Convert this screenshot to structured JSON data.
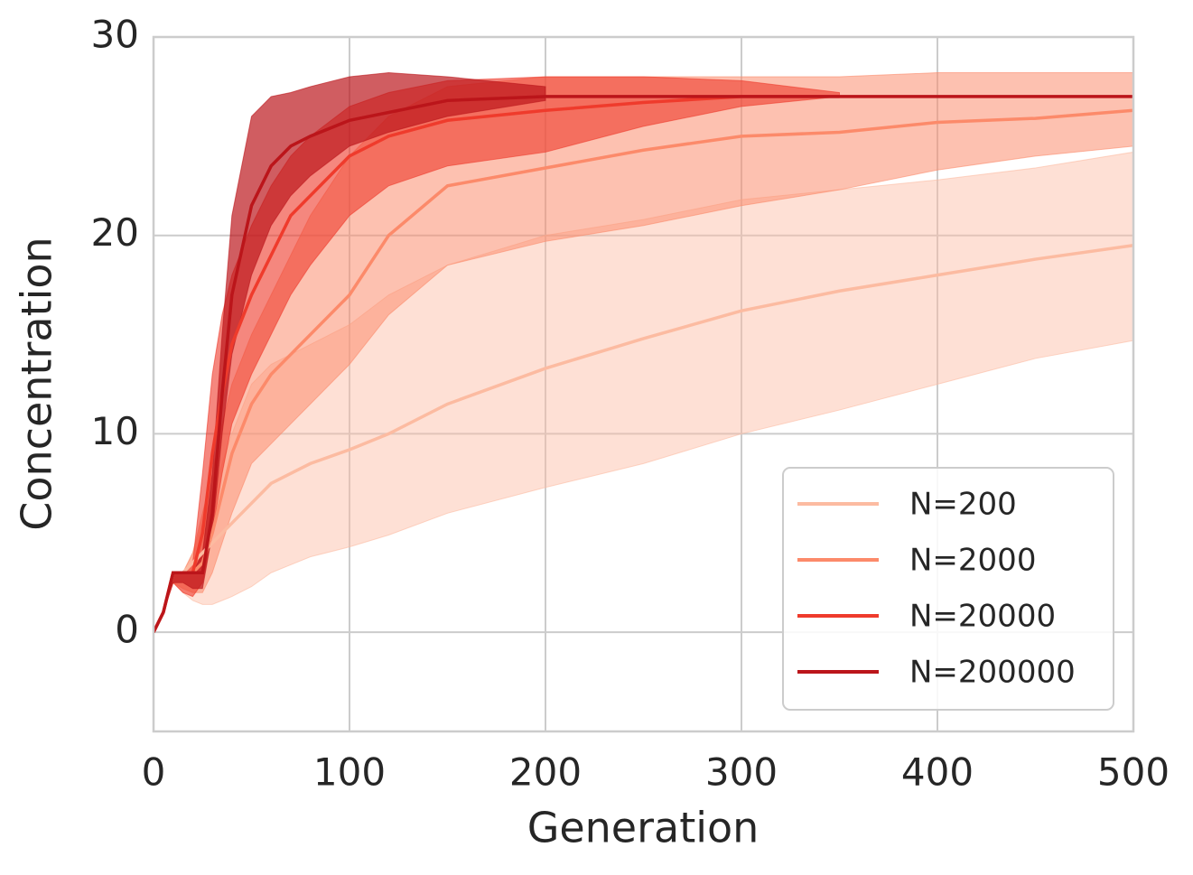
{
  "chart_data": {
    "type": "line",
    "xlabel": "Generation",
    "ylabel": "Concentration",
    "xlim": [
      0,
      500
    ],
    "ylim": [
      -5,
      30
    ],
    "xticks": [
      0,
      100,
      200,
      300,
      400,
      500
    ],
    "yticks": [
      0,
      10,
      20,
      30
    ],
    "grid": true,
    "legend": "lower right",
    "x": [
      0,
      5,
      10,
      15,
      20,
      25,
      30,
      35,
      40,
      50,
      60,
      70,
      80,
      100,
      120,
      150,
      200,
      250,
      300,
      350,
      400,
      450,
      500
    ],
    "series": [
      {
        "name": "N=200",
        "color": "#fcbba1",
        "values": [
          0,
          1,
          3,
          3,
          3.5,
          4,
          4.5,
          5,
          5.5,
          6.5,
          7.5,
          8,
          8.5,
          9.2,
          10,
          11.5,
          13.3,
          14.8,
          16.2,
          17.2,
          18,
          18.8,
          19.5
        ],
        "lower": [
          0,
          1,
          2.5,
          2,
          1.6,
          1.4,
          1.4,
          1.6,
          1.8,
          2.3,
          3,
          3.4,
          3.8,
          4.3,
          4.9,
          6,
          7.3,
          8.5,
          10,
          11.2,
          12.5,
          13.8,
          14.7
        ],
        "upper": [
          0,
          1,
          3,
          3,
          4,
          5.5,
          7,
          8.5,
          10,
          12.5,
          13.5,
          14,
          14.5,
          15.5,
          17,
          18.5,
          20,
          20.8,
          21.8,
          22.3,
          22.8,
          23.4,
          24.2
        ]
      },
      {
        "name": "N=2000",
        "color": "#fc8a6a",
        "values": [
          0,
          1,
          3,
          3,
          3,
          3.5,
          5,
          7,
          9,
          11.5,
          13,
          14,
          15,
          17,
          20,
          22.5,
          23.4,
          24.3,
          25,
          25.2,
          25.7,
          25.9,
          26.3
        ],
        "lower": [
          0,
          1,
          2.5,
          2.2,
          2,
          2,
          3,
          4.5,
          6,
          8.5,
          9.5,
          10.5,
          11.5,
          13.5,
          16,
          18.5,
          19.7,
          20.5,
          21.5,
          22.3,
          23.3,
          24,
          24.5
        ],
        "upper": [
          0,
          1,
          3,
          3,
          4,
          6,
          8,
          10.5,
          12.5,
          15,
          17,
          19,
          21,
          24,
          26,
          27.5,
          28,
          28,
          28,
          28,
          28.2,
          28.2,
          28.2
        ]
      },
      {
        "name": "N=20000",
        "color": "#ef3b2c",
        "values": [
          0,
          1,
          3,
          3,
          3,
          5,
          9,
          12,
          14.5,
          17,
          19,
          21,
          22,
          24,
          25,
          25.8,
          26.3,
          26.7,
          27,
          27,
          null,
          null,
          null
        ],
        "lower": [
          0,
          1,
          2.5,
          2,
          1.8,
          2.5,
          5,
          8,
          10.5,
          13,
          15,
          17,
          18.5,
          21,
          22.5,
          23.5,
          24.2,
          25.5,
          26.5,
          27,
          null,
          null,
          null
        ],
        "upper": [
          0,
          1,
          3,
          3,
          3.5,
          8,
          13,
          16,
          18,
          20.5,
          22.5,
          24,
          25,
          26.5,
          27.2,
          27.8,
          28,
          28,
          27.8,
          27.2,
          null,
          null,
          null
        ]
      },
      {
        "name": "N=200000",
        "color": "#bb151a",
        "values": [
          0,
          1,
          3,
          3,
          3,
          3,
          6,
          12,
          17,
          21.5,
          23.5,
          24.5,
          25,
          25.8,
          26.2,
          26.8,
          27,
          27,
          27,
          27,
          27,
          27,
          27
        ],
        "lower": [
          0,
          1,
          2.5,
          2.5,
          2.2,
          2.2,
          5,
          10,
          14,
          18,
          20.5,
          22,
          23,
          24.5,
          25.2,
          26,
          26.8,
          null,
          null,
          null,
          null,
          null,
          null
        ],
        "upper": [
          0,
          1,
          3,
          3,
          3,
          4,
          8,
          15,
          21,
          26,
          27,
          27.2,
          27.5,
          28,
          28.2,
          28,
          27.5,
          null,
          null,
          null,
          null,
          null,
          null
        ]
      }
    ]
  }
}
